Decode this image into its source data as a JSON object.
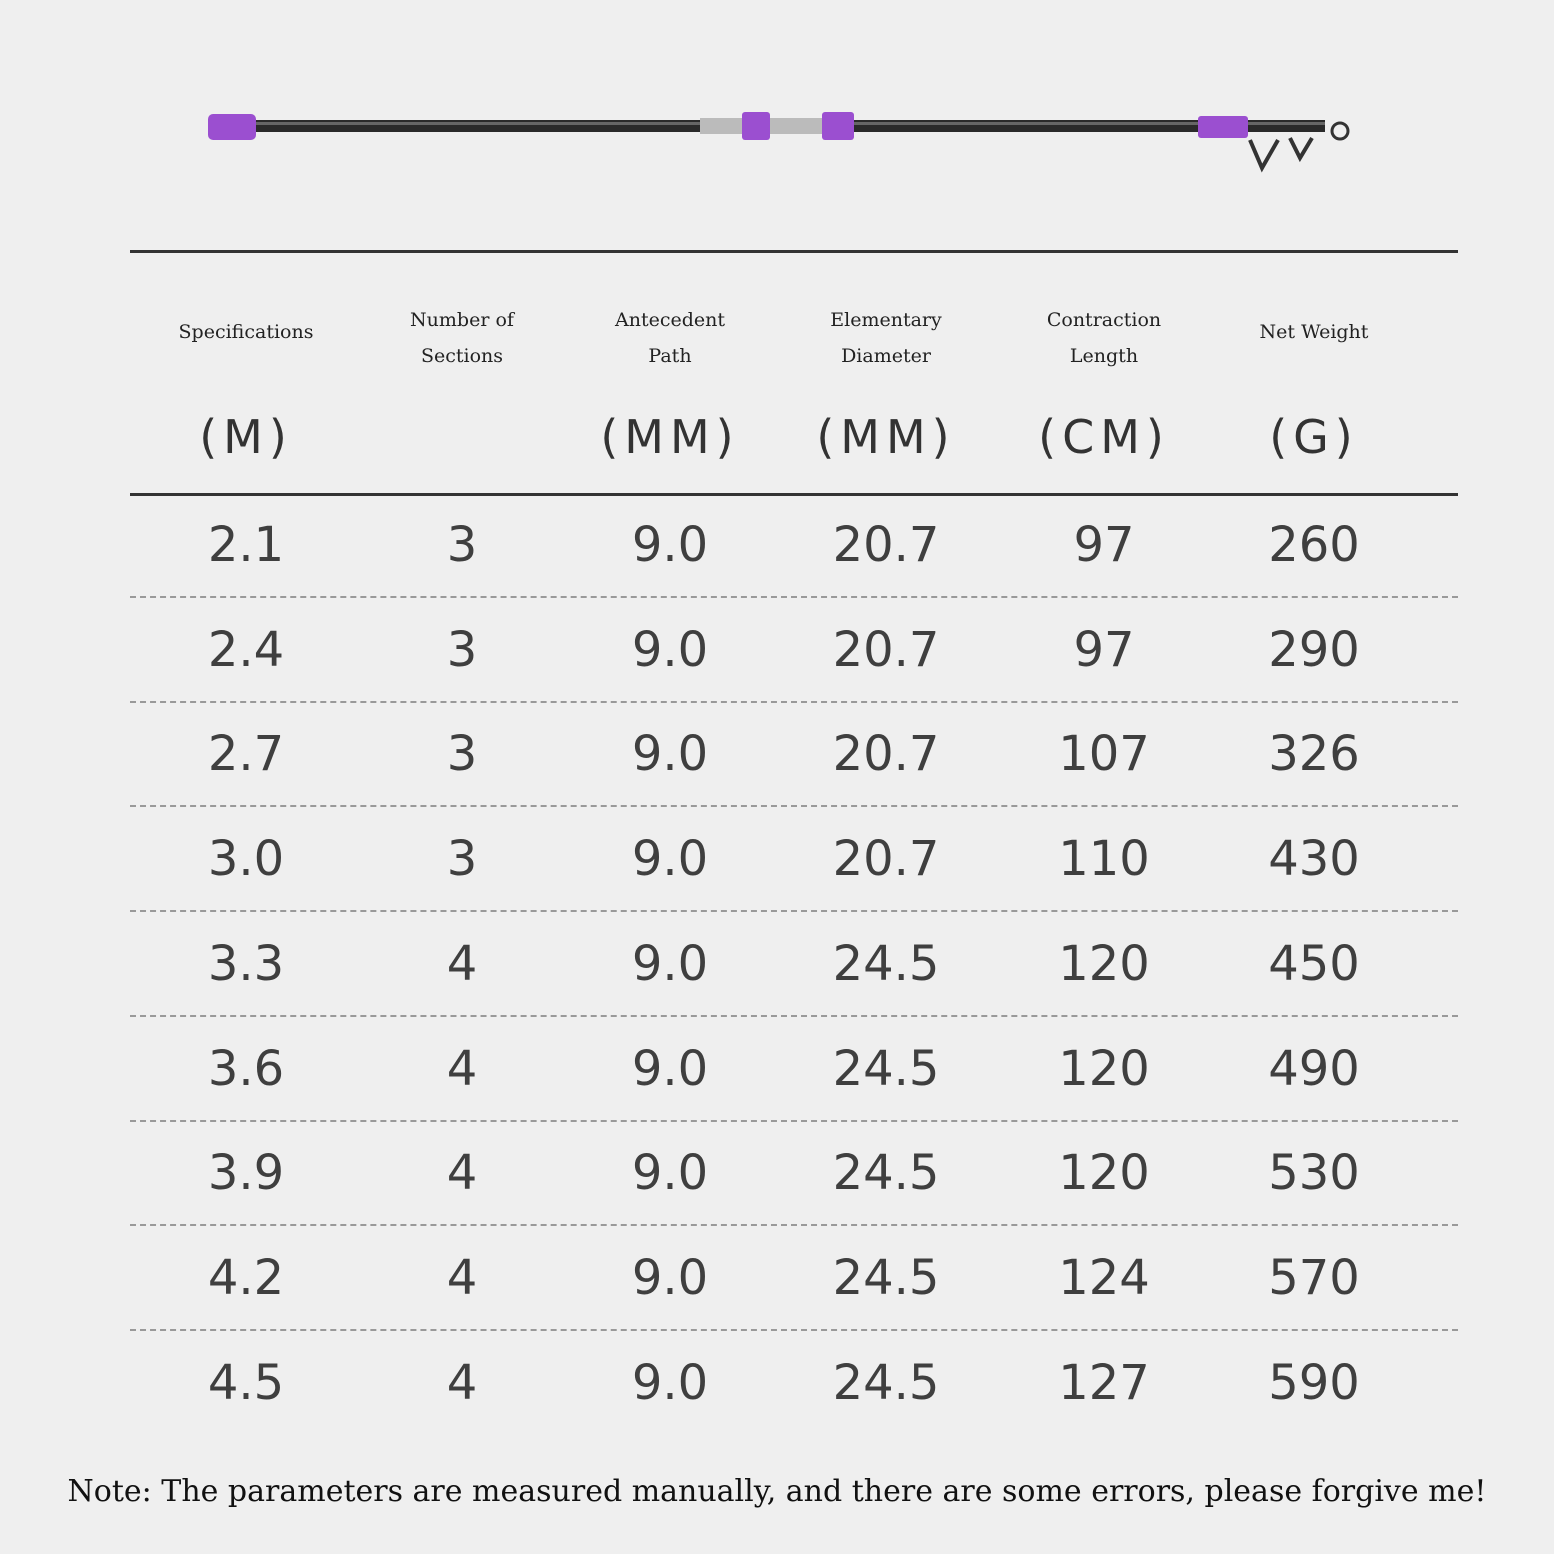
{
  "table": {
    "columns": [
      {
        "name": [
          "Specifications"
        ],
        "unit": "(M)"
      },
      {
        "name": [
          "Number of",
          "Sections"
        ],
        "unit": null
      },
      {
        "name": [
          "Antecedent",
          "Path"
        ],
        "unit": "(MM)"
      },
      {
        "name": [
          "Elementary",
          "Diameter"
        ],
        "unit": "(MM)"
      },
      {
        "name": [
          "Contraction",
          "Length"
        ],
        "unit": "(CM)"
      },
      {
        "name": [
          "Net Weight"
        ],
        "unit": "(G)"
      }
    ],
    "rows": [
      [
        "2.1",
        "3",
        "9.0",
        "20.7",
        "97",
        "260"
      ],
      [
        "2.4",
        "3",
        "9.0",
        "20.7",
        "97",
        "290"
      ],
      [
        "2.7",
        "3",
        "9.0",
        "20.7",
        "107",
        "326"
      ],
      [
        "3.0",
        "3",
        "9.0",
        "20.7",
        "110",
        "430"
      ],
      [
        "3.3",
        "4",
        "9.0",
        "24.5",
        "120",
        "450"
      ],
      [
        "3.6",
        "4",
        "9.0",
        "24.5",
        "120",
        "490"
      ],
      [
        "3.9",
        "4",
        "9.0",
        "24.5",
        "120",
        "530"
      ],
      [
        "4.2",
        "4",
        "9.0",
        "24.5",
        "124",
        "570"
      ],
      [
        "4.5",
        "4",
        "9.0",
        "24.5",
        "127",
        "590"
      ]
    ]
  },
  "note": "Note: The parameters are measured manually, and there are some errors, please forgive me!"
}
